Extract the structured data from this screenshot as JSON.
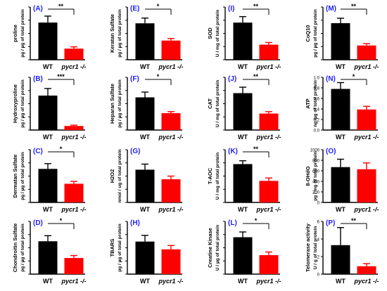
{
  "colors": {
    "wt": "#000000",
    "mutant": "#ff0000",
    "panel_letter": "#1f1fff"
  },
  "chart_data": [
    {
      "type": "bar",
      "panel": "(A)",
      "ylabel": "proline",
      "ylabel2": "pg / µg of total protein",
      "categories": [
        "WT",
        "pycr1 -/-"
      ],
      "values": [
        1.27,
        0.38
      ],
      "errors": [
        0.22,
        0.06
      ],
      "significance": "**",
      "yticks": [],
      "ylim": [
        0,
        1.8
      ]
    },
    {
      "type": "bar",
      "panel": "(B)",
      "ylabel": "Hydroxyproline",
      "ylabel2": "pg / µg of total protein",
      "categories": [
        "WT",
        "pycr1 -/-"
      ],
      "values": [
        17,
        2
      ],
      "errors": [
        3.5,
        0.4
      ],
      "significance": "***",
      "yticks": [],
      "ylim": [
        0,
        26
      ]
    },
    {
      "type": "bar",
      "panel": "(C)",
      "ylabel": "Dermatan Sulfate",
      "ylabel2": "pg / µg of total protein",
      "categories": [
        "WT",
        "pycr1 -/-"
      ],
      "values": [
        3.5,
        1.95
      ],
      "errors": [
        0.55,
        0.25
      ],
      "significance": "*",
      "yticks": [],
      "ylim": [
        0,
        5.5
      ]
    },
    {
      "type": "bar",
      "panel": "(D)",
      "ylabel": "Chondroitin Sulfate",
      "ylabel2": "pg / µg of total protein",
      "categories": [
        "WT",
        "pycr1 -/-"
      ],
      "values": [
        5.3,
        2.6
      ],
      "errors": [
        0.9,
        0.4
      ],
      "significance": "*",
      "yticks": [],
      "ylim": [
        0,
        8.5
      ]
    },
    {
      "type": "bar",
      "panel": "(E)",
      "ylabel": "Keratan Sulfate",
      "ylabel2": "pg / µg of total protein",
      "categories": [
        "WT",
        "pycr1 -/-"
      ],
      "values": [
        3.8,
        2.0
      ],
      "errors": [
        0.55,
        0.22
      ],
      "significance": "*",
      "yticks": [],
      "ylim": [
        0,
        5.5
      ]
    },
    {
      "type": "bar",
      "panel": "(F)",
      "ylabel": "Heparan Sulfate",
      "ylabel2": "pg / µg of total protein",
      "categories": [
        "WT",
        "pycr1 -/-"
      ],
      "values": [
        62,
        32
      ],
      "errors": [
        10,
        3
      ],
      "significance": "*",
      "yticks": [],
      "ylim": [
        0,
        100
      ]
    },
    {
      "type": "bar",
      "panel": "(G)",
      "ylabel": "H2O2",
      "ylabel2": "nmol / ug of total protein",
      "categories": [
        "WT",
        "pycr1 -/-"
      ],
      "values": [
        205,
        145
      ],
      "errors": [
        35,
        20
      ],
      "significance": "",
      "yticks": [],
      "ylim": [
        0,
        330
      ]
    },
    {
      "type": "bar",
      "panel": "(H)",
      "ylabel": "TBARS",
      "ylabel2": "pg / µg of total protein",
      "categories": [
        "WT",
        "pycr1 -/-"
      ],
      "values": [
        21,
        16
      ],
      "errors": [
        4,
        2.5
      ],
      "significance": "",
      "yticks": [],
      "ylim": [
        0,
        34
      ]
    },
    {
      "type": "bar",
      "panel": "(I)",
      "ylabel": "SOD",
      "ylabel2": "U / mg of total protein",
      "categories": [
        "WT",
        "pycr1 -/-"
      ],
      "values": [
        15.5,
        6.3
      ],
      "errors": [
        2.5,
        0.9
      ],
      "significance": "**",
      "yticks": [],
      "ylim": [
        0,
        22
      ]
    },
    {
      "type": "bar",
      "panel": "(J)",
      "ylabel": "CAT",
      "ylabel2": "U / mg of total protein",
      "categories": [
        "WT",
        "pycr1 -/-"
      ],
      "values": [
        5.6,
        2.5
      ],
      "errors": [
        0.9,
        0.3
      ],
      "significance": "**",
      "yticks": [],
      "ylim": [
        0,
        8
      ]
    },
    {
      "type": "bar",
      "panel": "(K)",
      "ylabel": "T-AOC",
      "ylabel2": "U / mg of total protein",
      "categories": [
        "WT",
        "pycr1 -/-"
      ],
      "values": [
        80,
        45
      ],
      "errors": [
        7,
        6
      ],
      "significance": "**",
      "yticks": [],
      "ylim": [
        0,
        110
      ]
    },
    {
      "type": "bar",
      "panel": "(L)",
      "ylabel": "Creatine Kinase",
      "ylabel2": "U / µg of total protein",
      "categories": [
        "WT",
        "pycr1 -/-"
      ],
      "values": [
        35,
        18
      ],
      "errors": [
        5,
        3
      ],
      "significance": "*",
      "yticks": [],
      "ylim": [
        0,
        50
      ]
    },
    {
      "type": "bar",
      "panel": "(M)",
      "ylabel": "CoQ10",
      "ylabel2": "pg / µg of total protein",
      "categories": [
        "WT",
        "pycr1 -/-"
      ],
      "values": [
        5.9,
        2.3
      ],
      "errors": [
        0.8,
        0.3
      ],
      "significance": "**",
      "yticks": [],
      "ylim": [
        0,
        8.5
      ]
    },
    {
      "type": "bar",
      "panel": "(N)",
      "ylabel": "ATP",
      "ylabel2": "ng /µg of total protein",
      "categories": [
        "WT",
        "pycr1 -/-"
      ],
      "values": [
        0.78,
        0.39
      ],
      "errors": [
        0.12,
        0.06
      ],
      "significance": "*",
      "yticks": [
        "0.0",
        "0.2",
        "0.4",
        "0.6",
        "0.8",
        "1.0"
      ],
      "ylim": [
        0,
        1.0
      ]
    },
    {
      "type": "bar",
      "panel": "(O)",
      "ylabel": "8-OHdG",
      "ylabel2": "pg / mg of total protein",
      "categories": [
        "WT",
        "pycr1 -/-"
      ],
      "values": [
        670,
        630
      ],
      "errors": [
        150,
        120
      ],
      "significance": "",
      "yticks": [
        "0",
        "200",
        "400",
        "600",
        "800",
        "1000"
      ],
      "ylim": [
        0,
        1000
      ]
    },
    {
      "type": "bar",
      "panel": "(P)",
      "ylabel": "Telomerase activity",
      "ylabel2": "U / g of total protein",
      "categories": [
        "WT",
        "pycr1 -/-"
      ],
      "values": [
        3.3,
        0.9
      ],
      "errors": [
        2.0,
        0.3
      ],
      "significance": "**",
      "yticks": [
        "0",
        "2",
        "4",
        "6"
      ],
      "ylim": [
        0,
        6
      ]
    }
  ]
}
